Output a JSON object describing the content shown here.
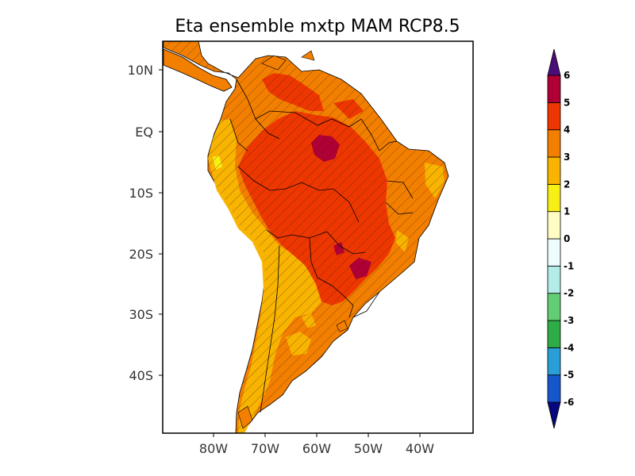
{
  "chart_data": {
    "type": "heatmap",
    "title": "Eta ensemble mxtp MAM RCP8.5",
    "x_ticks": [
      "80W",
      "70W",
      "60W",
      "50W",
      "40W"
    ],
    "y_ticks": [
      "10N",
      "EQ",
      "10S",
      "20S",
      "30S",
      "40S"
    ],
    "colorbar": {
      "levels": [
        "-6",
        "-5",
        "-4",
        "-3",
        "-2",
        "-1",
        "0",
        "1",
        "2",
        "3",
        "4",
        "5",
        "6"
      ],
      "colors": [
        "#08077d",
        "#1556cc",
        "#2a9ed6",
        "#2eac45",
        "#63cd73",
        "#b4ece8",
        "#edfdfd",
        "#fffdc2",
        "#f8ef16",
        "#f8b400",
        "#f37f00",
        "#ee3700",
        "#b00035",
        "#4b0d7a"
      ]
    }
  }
}
